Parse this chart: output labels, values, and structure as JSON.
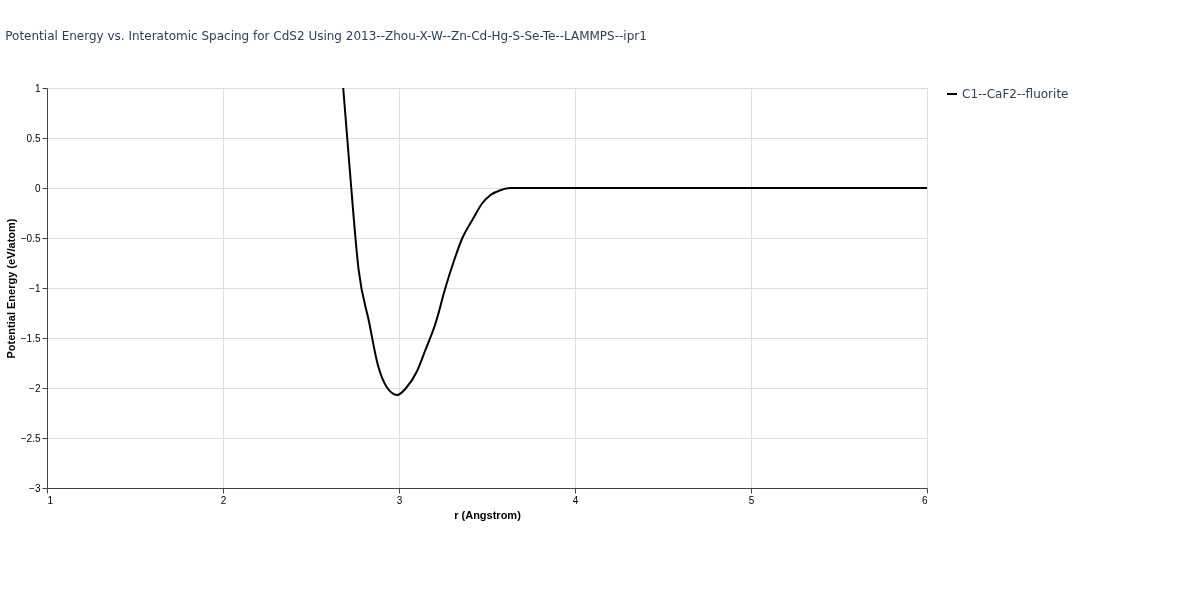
{
  "chart_data": {
    "type": "line",
    "title": "Potential Energy vs. Interatomic Spacing for CdS2 Using 2013--Zhou-X-W--Zn-Cd-Hg-S-Se-Te--LAMMPS--ipr1",
    "xlabel": "r (Angstrom)",
    "ylabel": "Potential Energy (eV/atom)",
    "x": [
      2.683,
      2.72,
      2.77,
      2.83,
      2.88,
      2.93,
      2.99,
      3.04,
      3.1,
      3.15,
      3.21,
      3.26,
      3.31,
      3.36,
      3.42,
      3.47,
      3.52,
      3.58,
      3.63,
      4.0,
      5.0,
      6.0
    ],
    "series": [
      {
        "name": "C1--CaF2--fluorite",
        "color": "#000000",
        "values": [
          1.0,
          0.19,
          -0.81,
          -1.34,
          -1.77,
          -1.99,
          -2.07,
          -2.0,
          -1.84,
          -1.62,
          -1.34,
          -1.02,
          -0.74,
          -0.5,
          -0.31,
          -0.16,
          -0.07,
          -0.02,
          0.0,
          0.0,
          0.0,
          0.0
        ]
      }
    ],
    "xlim": [
      1,
      6
    ],
    "xticks": [
      1,
      2,
      3,
      4,
      5,
      6
    ],
    "ylim": [
      -3,
      1
    ],
    "yticks": [
      -3,
      -2.5,
      -2,
      -1.5,
      -1,
      -0.5,
      0,
      0.5,
      1
    ],
    "grid": true,
    "legend": "top right",
    "marker": "none",
    "line_style": "solid"
  }
}
